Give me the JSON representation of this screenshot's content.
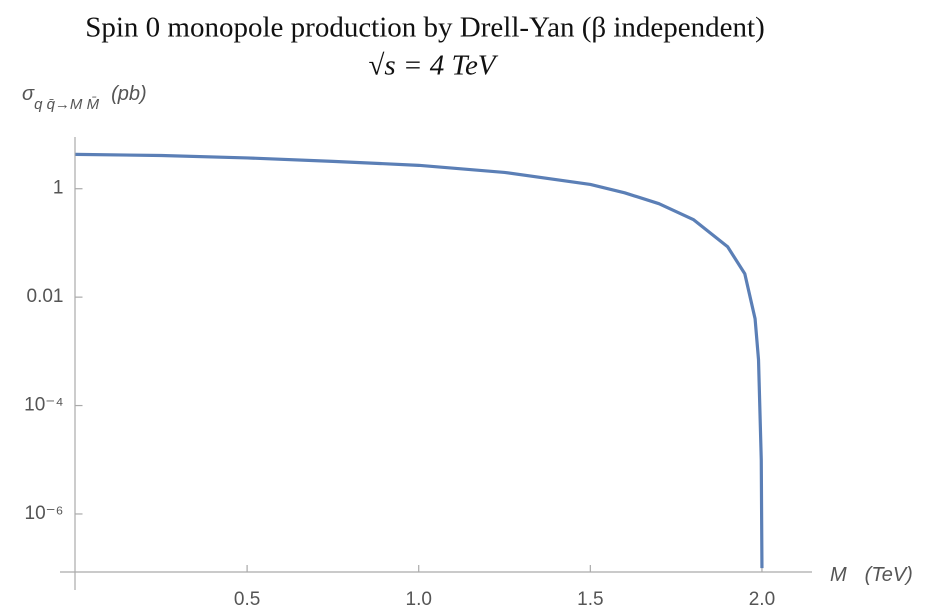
{
  "chart_data": {
    "type": "line",
    "title": "Spin 0 monopole production by Drell-Yan (β independent)",
    "subtitle": "√s = 4 TeV",
    "ylabel": {
      "symbol": "σ",
      "subscript": "q q̄→M M̄",
      "unit": "(pb)"
    },
    "xlabel": {
      "symbol": "M",
      "unit": "(TeV)"
    },
    "x": [
      0,
      0.25,
      0.5,
      0.75,
      1.0,
      1.25,
      1.5,
      1.6,
      1.7,
      1.8,
      1.9,
      1.95,
      1.98,
      1.99,
      1.998,
      2.0
    ],
    "values": [
      4.3,
      4.1,
      3.7,
      3.2,
      2.7,
      2.0,
      1.2,
      0.84,
      0.53,
      0.27,
      0.085,
      0.027,
      0.004,
      0.0007,
      1e-05,
      1e-07
    ],
    "color": "#5b7fb6",
    "xlim": [
      0,
      2.14
    ],
    "ylim": [
      8.5e-08,
      9
    ],
    "ylog": true,
    "xticks": [
      0.5,
      {
        "value": 1.0,
        "label": "1.0"
      },
      1.5,
      {
        "value": 2.0,
        "label": "2.0"
      }
    ],
    "yticks": [
      1,
      0.01,
      {
        "value": 0.0001,
        "label": "10⁻⁴"
      },
      {
        "value": 1e-06,
        "label": "10⁻⁶"
      }
    ]
  }
}
